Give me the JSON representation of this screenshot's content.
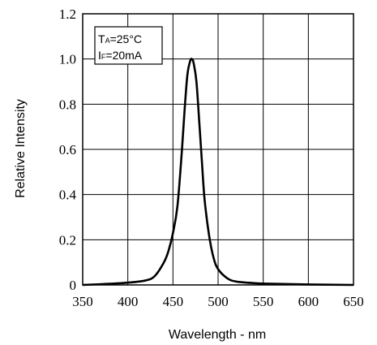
{
  "chart_data": {
    "type": "line",
    "title": "",
    "xlabel": "Wavelength - nm",
    "ylabel": "Relative Intensity",
    "xlim": [
      350,
      650
    ],
    "ylim": [
      0,
      1.2
    ],
    "x_ticks": [
      "350",
      "400",
      "450",
      "500",
      "550",
      "600",
      "650"
    ],
    "y_ticks": [
      "0",
      "0.2",
      "0.4",
      "0.6",
      "0.8",
      "1.0",
      "1.2"
    ],
    "grid": true,
    "annotation": {
      "line1_main": "T",
      "line1_sub": "A",
      "line1_rest": "=25°C",
      "line2_main": "I",
      "line2_sub": "F",
      "line2_rest": "=20mA"
    },
    "series": [
      {
        "color": "#000000",
        "x": [
          350,
          380,
          400,
          420,
          430,
          440,
          445,
          450,
          455,
          460,
          463,
          466,
          469,
          471,
          473,
          476,
          479,
          482,
          485,
          490,
          495,
          500,
          510,
          520,
          540,
          560,
          600,
          650
        ],
        "y": [
          0.0,
          0.005,
          0.01,
          0.02,
          0.04,
          0.1,
          0.15,
          0.23,
          0.35,
          0.6,
          0.78,
          0.93,
          0.99,
          1.0,
          0.98,
          0.9,
          0.73,
          0.55,
          0.38,
          0.22,
          0.12,
          0.07,
          0.03,
          0.015,
          0.008,
          0.005,
          0.002,
          0.0
        ]
      }
    ]
  }
}
